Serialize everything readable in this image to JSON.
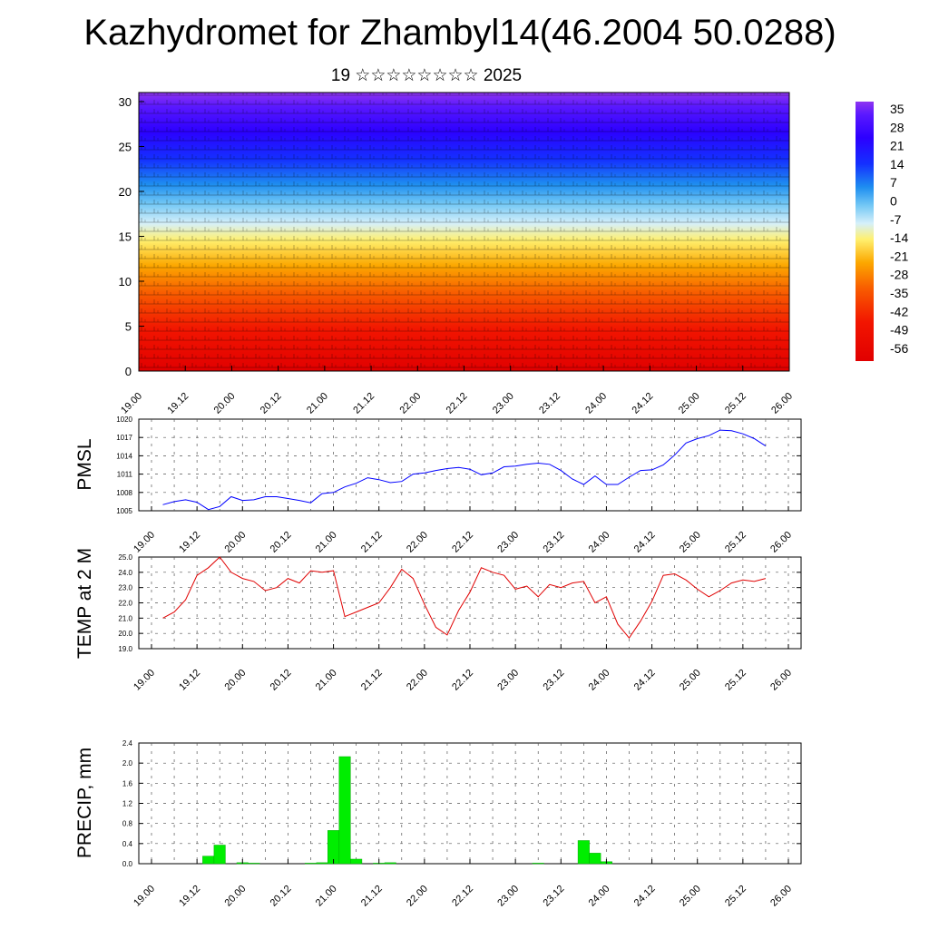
{
  "title": "Kazhydromet for Zhambyl14(46.2004 50.0288)",
  "subtitle": "19 ☆☆☆☆☆☆☆☆ 2025",
  "x_tick_labels": [
    "19.00",
    "19.12",
    "20.00",
    "20.12",
    "21.00",
    "21.12",
    "22.00",
    "22.12",
    "23.00",
    "23.12",
    "24.00",
    "24.12",
    "25.00",
    "25.12",
    "26.00"
  ],
  "colors": {
    "pmsl_line": "#0000ff",
    "temp_line": "#e00000",
    "precip_bar": "#00ee00",
    "grid": "#555555"
  },
  "chart_data": [
    {
      "type": "heatmap",
      "description_of_axes": "time vs height level",
      "ylim": [
        0,
        30
      ],
      "y_ticks": [
        0,
        5,
        10,
        15,
        20,
        25,
        30
      ],
      "colorbar_labels": [
        "35",
        "28",
        "21",
        "14",
        "7",
        "0",
        "-7",
        "-14",
        "-21",
        "-28",
        "-35",
        "-42",
        "-49",
        "-56"
      ],
      "colorbar_values": [
        35,
        28,
        21,
        14,
        7,
        0,
        -7,
        -14,
        -21,
        -28,
        -35,
        -42,
        -49,
        -56
      ],
      "grid": false,
      "wind_barbs": true
    },
    {
      "type": "line",
      "ylabel": "PMSL",
      "ylim": [
        1005,
        1020
      ],
      "y_ticks": [
        1005,
        1008,
        1011,
        1014,
        1017,
        1020
      ],
      "x": [
        0.25,
        0.5,
        0.75,
        1,
        1.25,
        1.5,
        1.75,
        2,
        2.25,
        2.5,
        2.75,
        3,
        3.25,
        3.5,
        3.75,
        4,
        4.25,
        4.5,
        4.75,
        5,
        5.25,
        5.5,
        5.75,
        6,
        6.25,
        6.5,
        6.75,
        7,
        7.25,
        7.5,
        7.75,
        8,
        8.25,
        8.5,
        8.75,
        9,
        9.25,
        9.5,
        9.75,
        10,
        10.25,
        10.5,
        10.75,
        11,
        11.25,
        11.5,
        11.75,
        12,
        12.25,
        12.5,
        12.75,
        13,
        13.25,
        13.5
      ],
      "values": [
        1006.0,
        1006.5,
        1006.8,
        1006.4,
        1005.2,
        1005.7,
        1007.3,
        1006.7,
        1006.8,
        1007.3,
        1007.3,
        1007.0,
        1006.7,
        1006.3,
        1007.8,
        1008.0,
        1008.9,
        1009.5,
        1010.4,
        1010.1,
        1009.6,
        1009.8,
        1011.0,
        1011.2,
        1011.6,
        1011.9,
        1012.1,
        1011.8,
        1010.9,
        1011.2,
        1012.2,
        1012.3,
        1012.6,
        1012.8,
        1012.6,
        1011.6,
        1010.2,
        1009.3,
        1010.7,
        1009.3,
        1009.3,
        1010.5,
        1011.6,
        1011.7,
        1012.5,
        1014.1,
        1016.1,
        1016.8,
        1017.3,
        1018.2,
        1018.1,
        1017.6,
        1016.8,
        1015.6
      ]
    },
    {
      "type": "line",
      "ylabel": "TEMP at 2 M",
      "ylim": [
        19.0,
        25.0
      ],
      "y_ticks": [
        19.0,
        20.0,
        21.0,
        22.0,
        23.0,
        24.0,
        25.0
      ],
      "x": [
        0.25,
        0.5,
        0.75,
        1,
        1.25,
        1.5,
        1.75,
        2,
        2.25,
        2.5,
        2.75,
        3,
        3.25,
        3.5,
        3.75,
        4,
        4.25,
        4.5,
        4.75,
        5,
        5.25,
        5.5,
        5.75,
        6,
        6.25,
        6.5,
        6.75,
        7,
        7.25,
        7.5,
        7.75,
        8,
        8.25,
        8.5,
        8.75,
        9,
        9.25,
        9.5,
        9.75,
        10,
        10.25,
        10.5,
        10.75,
        11,
        11.25,
        11.5,
        11.75,
        12,
        12.25,
        12.5,
        12.75,
        13,
        13.25,
        13.5
      ],
      "values": [
        21.0,
        21.4,
        22.2,
        23.8,
        24.3,
        25.0,
        24.0,
        23.6,
        23.4,
        22.8,
        23.0,
        23.6,
        23.3,
        24.1,
        24.0,
        24.1,
        21.1,
        21.4,
        21.7,
        22.0,
        23.0,
        24.2,
        23.6,
        21.9,
        20.4,
        19.9,
        21.5,
        22.7,
        24.3,
        24.0,
        23.8,
        22.9,
        23.1,
        22.4,
        23.2,
        23.0,
        23.3,
        23.4,
        22.0,
        22.4,
        20.6,
        19.7,
        20.8,
        22.1,
        23.8,
        23.9,
        23.5,
        22.9,
        22.4,
        22.8,
        23.3,
        23.5,
        23.4,
        23.6
      ]
    },
    {
      "type": "bar",
      "ylabel": "PRECIP, mm",
      "ylim": [
        0,
        2.4
      ],
      "y_ticks": [
        0.0,
        0.4,
        0.8,
        1.2,
        1.6,
        2.0,
        2.4
      ],
      "x": [
        1.25,
        1.5,
        2,
        2.25,
        3.5,
        3.75,
        4,
        4.25,
        4.5,
        5,
        5.25,
        8.5,
        9.5,
        9.75,
        10
      ],
      "values": [
        0.15,
        0.37,
        0.02,
        0.01,
        0.01,
        0.02,
        0.66,
        2.13,
        0.09,
        0.01,
        0.02,
        0.01,
        0.46,
        0.21,
        0.04
      ]
    }
  ]
}
